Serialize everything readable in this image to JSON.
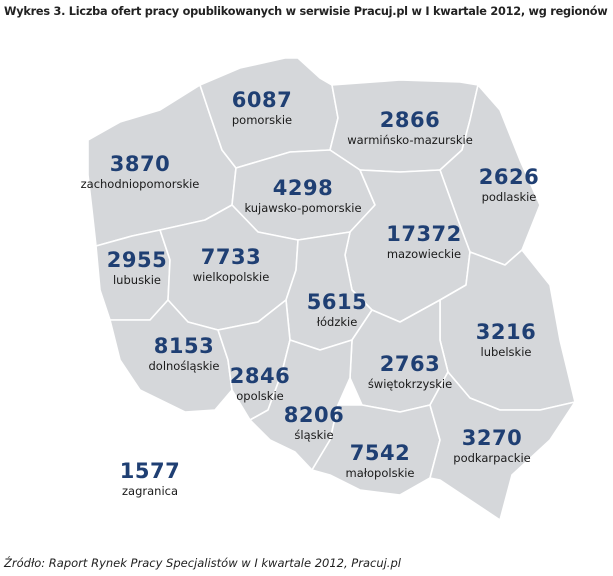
{
  "title": "Wykres 3. Liczba ofert pracy opublikowanych w serwisie Pracuj.pl w I kwartale 2012, wg regionów",
  "source": "Źródło: Raport Rynek Pracy Specjalistów w I kwartale 2012, Pracuj.pl",
  "colors": {
    "region_fill": "#d5d7da",
    "region_border": "#ffffff",
    "value_text": "#1f3f73"
  },
  "regions": [
    {
      "id": "pomorskie",
      "name": "pomorskie",
      "value": "6087"
    },
    {
      "id": "warminsko-mazurskie",
      "name": "warmińsko-mazurskie",
      "value": "2866"
    },
    {
      "id": "zachodniopomorskie",
      "name": "zachodniopomorskie",
      "value": "3870"
    },
    {
      "id": "kujawsko-pomorskie",
      "name": "kujawsko-pomorskie",
      "value": "4298"
    },
    {
      "id": "podlaskie",
      "name": "podlaskie",
      "value": "2626"
    },
    {
      "id": "mazowieckie",
      "name": "mazowieckie",
      "value": "17372"
    },
    {
      "id": "lubuskie",
      "name": "lubuskie",
      "value": "2955"
    },
    {
      "id": "wielkopolskie",
      "name": "wielkopolskie",
      "value": "7733"
    },
    {
      "id": "lodzkie",
      "name": "łódzkie",
      "value": "5615"
    },
    {
      "id": "lubelskie",
      "name": "lubelskie",
      "value": "3216"
    },
    {
      "id": "dolnoslaskie",
      "name": "dolnośląskie",
      "value": "8153"
    },
    {
      "id": "swietokrzyskie",
      "name": "świętokrzyskie",
      "value": "2763"
    },
    {
      "id": "opolskie",
      "name": "opolskie",
      "value": "2846"
    },
    {
      "id": "slaskie",
      "name": "śląskie",
      "value": "8206"
    },
    {
      "id": "podkarpackie",
      "name": "podkarpackie",
      "value": "3270"
    },
    {
      "id": "malopolskie",
      "name": "małopolskie",
      "value": "7542"
    },
    {
      "id": "zagranica",
      "name": "zagranica",
      "value": "1577"
    }
  ]
}
